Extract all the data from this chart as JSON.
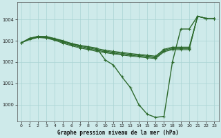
{
  "title": "Graphe pression niveau de la mer (hPa)",
  "background_color": "#ceeaea",
  "grid_color": "#aad4d4",
  "line_color": "#2d6a2d",
  "xlim": [
    -0.5,
    23.5
  ],
  "ylim": [
    999.2,
    1004.8
  ],
  "yticks": [
    1000,
    1001,
    1002,
    1003,
    1004
  ],
  "xticks": [
    0,
    1,
    2,
    3,
    4,
    5,
    6,
    7,
    8,
    9,
    10,
    11,
    12,
    13,
    14,
    15,
    16,
    17,
    18,
    19,
    20,
    21,
    22,
    23
  ],
  "series": [
    [
      1002.9,
      1003.1,
      1003.2,
      1003.2,
      1003.1,
      1003.0,
      1002.85,
      1002.78,
      1002.72,
      1002.65,
      1002.1,
      1001.85,
      1001.3,
      1000.8,
      1000.0,
      999.55,
      999.4,
      999.45,
      1002.0,
      1003.55,
      1003.55,
      1004.15,
      1004.05,
      1004.05
    ],
    [
      1002.9,
      1003.05,
      1003.15,
      1003.12,
      1003.02,
      1002.88,
      1002.76,
      1002.66,
      1002.58,
      1002.5,
      1002.44,
      1002.38,
      1002.33,
      1002.28,
      1002.24,
      1002.2,
      1002.16,
      1002.48,
      1002.58,
      1002.58,
      1002.58,
      1004.15,
      1004.05,
      1004.05
    ],
    [
      1002.9,
      1003.08,
      1003.17,
      1003.14,
      1003.05,
      1002.92,
      1002.8,
      1002.7,
      1002.62,
      1002.55,
      1002.48,
      1002.42,
      1002.37,
      1002.32,
      1002.28,
      1002.24,
      1002.2,
      1002.52,
      1002.62,
      1002.62,
      1002.62,
      1004.15,
      1004.05,
      1004.05
    ],
    [
      1002.9,
      1003.1,
      1003.19,
      1003.16,
      1003.07,
      1002.95,
      1002.84,
      1002.74,
      1002.66,
      1002.59,
      1002.52,
      1002.46,
      1002.41,
      1002.36,
      1002.32,
      1002.28,
      1002.24,
      1002.56,
      1002.66,
      1002.66,
      1002.66,
      1004.15,
      1004.05,
      1004.05
    ],
    [
      1002.9,
      1003.12,
      1003.21,
      1003.18,
      1003.1,
      1002.98,
      1002.88,
      1002.78,
      1002.7,
      1002.63,
      1002.56,
      1002.5,
      1002.45,
      1002.4,
      1002.36,
      1002.32,
      1002.28,
      1002.6,
      1002.7,
      1002.7,
      1002.7,
      1004.15,
      1004.05,
      1004.05
    ]
  ]
}
